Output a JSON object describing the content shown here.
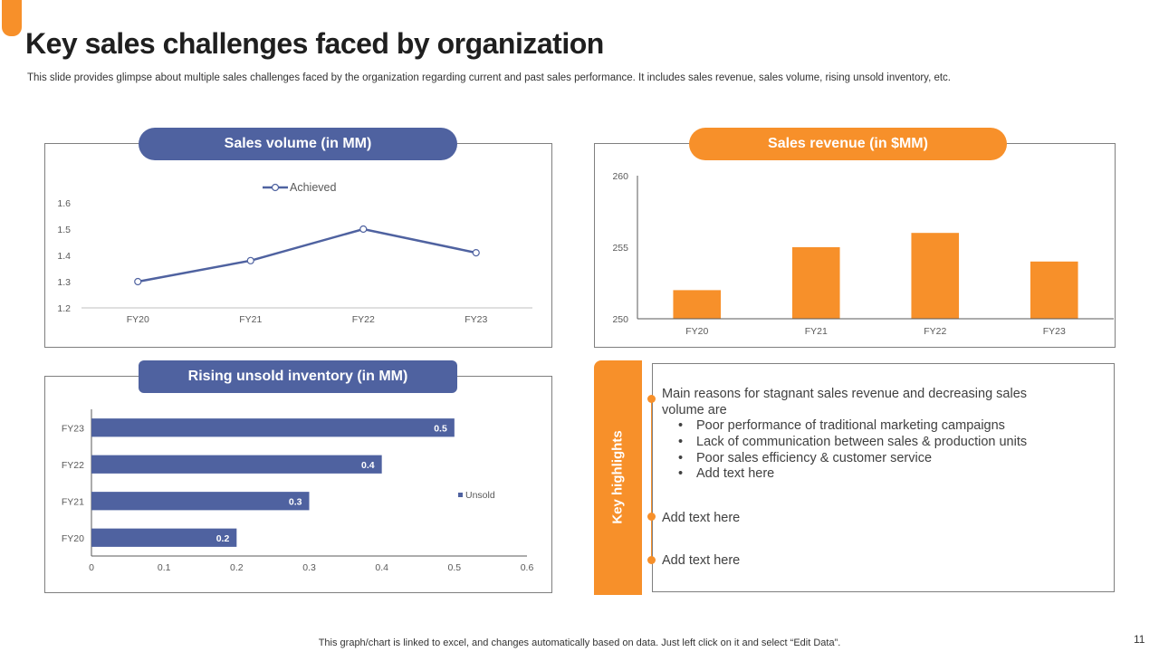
{
  "slide": {
    "title": "Key sales challenges faced by organization",
    "subtitle": "This slide provides glimpse about multiple sales challenges faced by the organization regarding current and past sales performance. It includes sales revenue, sales volume, rising unsold inventory, etc.",
    "footnote": "This graph/chart is linked to excel,  and changes automatically based on data. Just left click on it and select “Edit Data”.",
    "page_number": "11"
  },
  "colors": {
    "blue": "#4F62A0",
    "orange": "#F7902A",
    "line": "#4F62A0"
  },
  "panels": {
    "volume_title": "Sales volume (in MM)",
    "revenue_title": "Sales revenue (in $MM)",
    "inventory_title": "Rising unsold inventory (in MM)"
  },
  "highlights": {
    "label": "Key highlights",
    "main_line1": "Main reasons for stagnant sales revenue and decreasing sales",
    "main_line2": "volume are",
    "sub_items": [
      "Poor performance of traditional marketing campaigns",
      "Lack of communication between sales & production units",
      "Poor sales efficiency & customer service",
      "Add text here"
    ],
    "point2": "Add text here",
    "point3": "Add text here"
  },
  "chart_data": [
    {
      "type": "line",
      "title": "Sales volume (in MM)",
      "categories": [
        "FY20",
        "FY21",
        "FY22",
        "FY23"
      ],
      "series": [
        {
          "name": "Achieved",
          "values": [
            1.3,
            1.38,
            1.5,
            1.41
          ]
        }
      ],
      "ylim": [
        1.2,
        1.6
      ],
      "yticks": [
        "1.2",
        "1.3",
        "1.4",
        "1.5",
        "1.6"
      ],
      "legend": "top-center"
    },
    {
      "type": "bar",
      "title": "Sales revenue (in $MM)",
      "categories": [
        "FY20",
        "FY21",
        "FY22",
        "FY23"
      ],
      "values": [
        252,
        255,
        256,
        254
      ],
      "ylim": [
        250,
        260
      ],
      "yticks": [
        "250",
        "255",
        "260"
      ]
    },
    {
      "type": "bar",
      "orientation": "horizontal",
      "title": "Rising unsold inventory (in MM)",
      "categories": [
        "FY20",
        "FY21",
        "FY22",
        "FY23"
      ],
      "series": [
        {
          "name": "Unsold",
          "values": [
            0.2,
            0.3,
            0.4,
            0.5
          ]
        }
      ],
      "data_labels": [
        "0.2",
        "0.3",
        "0.4",
        "0.5"
      ],
      "xlim": [
        0,
        0.6
      ],
      "xticks": [
        "0",
        "0.1",
        "0.2",
        "0.3",
        "0.4",
        "0.5",
        "0.6"
      ],
      "legend": "right"
    }
  ]
}
